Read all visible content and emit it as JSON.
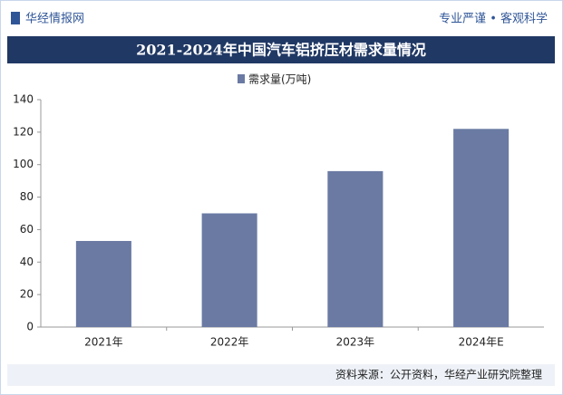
{
  "header": {
    "brand": "华经情报网",
    "slogan": "专业严谨 • 客观科学"
  },
  "footer": {
    "source": "资料来源：公开资料，华经产业研究院整理"
  },
  "chart_data": {
    "type": "bar",
    "title": "2021-2024年中国汽车铝挤压材需求量情况",
    "categories": [
      "2021年",
      "2022年",
      "2023年",
      "2024年E"
    ],
    "series": [
      {
        "name": "需求量(万吨)",
        "color": "#6a7aa3",
        "values": [
          53,
          70,
          96,
          122
        ]
      }
    ],
    "ylim": [
      0,
      140
    ],
    "yticks": [
      0,
      20,
      40,
      60,
      80,
      100,
      120,
      140
    ],
    "grid": false,
    "legend": "top"
  }
}
